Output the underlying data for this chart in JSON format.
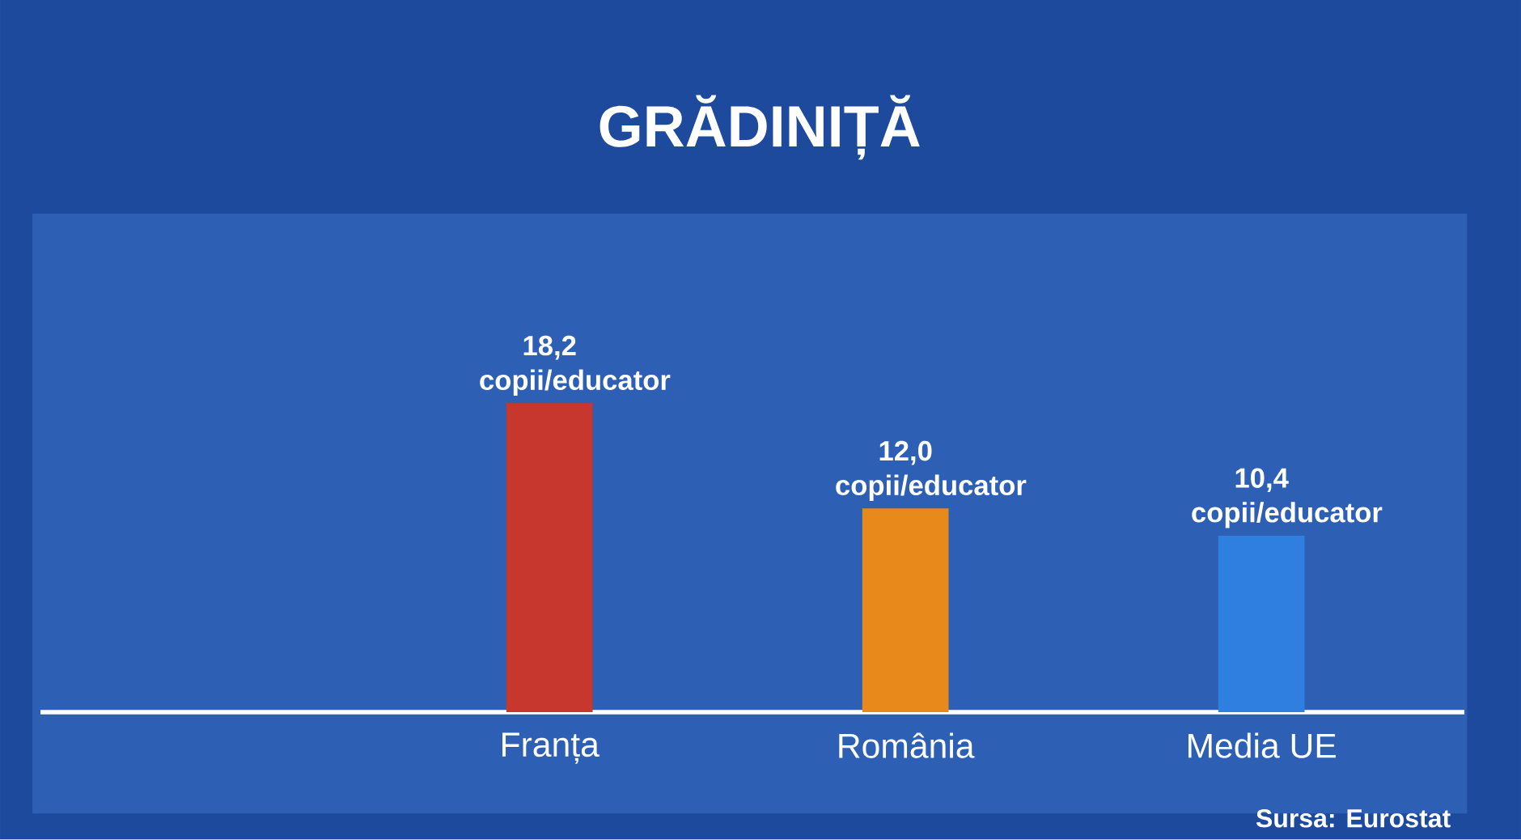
{
  "chart_data": {
    "type": "bar",
    "title": "GRĂDINIȚĂ",
    "categories": [
      "Franța",
      "România",
      "Media UE"
    ],
    "values": [
      18.2,
      12.0,
      10.4
    ],
    "colors": [
      "#c8372d",
      "#e8891c",
      "#2f7fe0"
    ],
    "value_labels": [
      "18,2 copii/educator",
      "12,0 copii/educator",
      "10,4 copii/educator"
    ],
    "annotations": [
      "Sursa: Eurostat"
    ]
  }
}
